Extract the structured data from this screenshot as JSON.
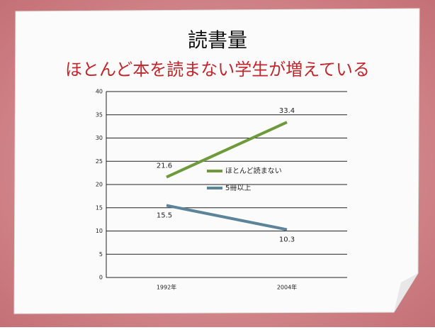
{
  "chart_data": {
    "type": "line",
    "title": "読書量",
    "subtitle": "ほとんど本を読まない学生が増えている",
    "categories": [
      "1992年",
      "2004年"
    ],
    "series": [
      {
        "name": "ほとんど読まない",
        "color": "#6e9a3c",
        "values": [
          21.6,
          33.4
        ]
      },
      {
        "name": "5冊以上",
        "color": "#5b8399",
        "values": [
          15.5,
          10.3
        ]
      }
    ],
    "ylim": [
      0,
      40
    ],
    "yticks": [
      0,
      5,
      10,
      15,
      20,
      25,
      30,
      35,
      40
    ],
    "grid": true,
    "legend": "center"
  }
}
